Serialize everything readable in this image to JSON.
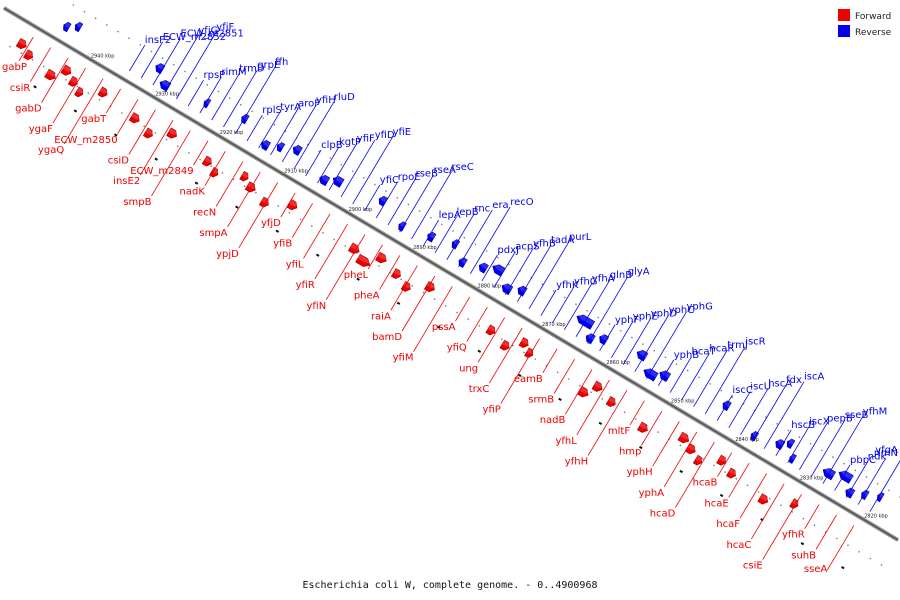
{
  "legend": {
    "forward": {
      "label": "Forward",
      "color": "#ee0000"
    },
    "reverse": {
      "label": "Reverse",
      "color": "#0000ee"
    }
  },
  "caption": "Escherichia coli W, complete genome. - 0..4900968",
  "scale": {
    "ticks": [
      "2940 kbp",
      "2930 kbp",
      "2920 kbp",
      "2910 kbp",
      "2900 kbp",
      "2890 kbp",
      "2880 kbp",
      "2870 kbp",
      "2860 kbp",
      "2850 kbp",
      "2840 kbp",
      "2830 kbp",
      "2820 kbp"
    ]
  },
  "genes": {
    "reverse": [
      "insF2",
      "ECW_m2852",
      "ECW_m2851",
      "yfjG",
      "yfjF",
      "rpsP",
      "rimM",
      "trmD",
      "grpE",
      "ffh",
      "rplS",
      "tyrA",
      "aroF",
      "yfiH",
      "rluD",
      "clpB",
      "kgtP",
      "yfiF",
      "yfiD",
      "yfiE",
      "yfiC",
      "rpoE",
      "rseB",
      "rseA",
      "rseC",
      "lepA",
      "lepB",
      "rnc",
      "era",
      "recO",
      "pdxJ",
      "acpS",
      "yfhB",
      "tadA",
      "purL",
      "yfhK",
      "yfhG",
      "yfhA",
      "glnB",
      "glyA",
      "yphF",
      "yphE",
      "yphD",
      "yphC",
      "yphG",
      "yphB",
      "hcaT",
      "hcaR",
      "trmJ",
      "iscR",
      "iscC",
      "iscU",
      "hscA",
      "fdx",
      "iscA",
      "hscB",
      "iscX",
      "pepB",
      "sseB",
      "yfhM",
      "pbpC",
      "ndk",
      "rlmN",
      "yfgA"
    ],
    "forward": [
      "gabP",
      "csiR",
      "gabD",
      "ygaF",
      "ygaQ",
      "gabT",
      "ECW_m2850",
      "csiD",
      "insE2",
      "smpB",
      "ECW_m2849",
      "nadK",
      "recN",
      "smpA",
      "ypjD",
      "yfjD",
      "yfiB",
      "yfiL",
      "yfiR",
      "yfiN",
      "pheL",
      "pheA",
      "raiA",
      "bamD",
      "yfiM",
      "pssA",
      "yfiQ",
      "ung",
      "trxC",
      "yfiP",
      "eamB",
      "srmB",
      "nadB",
      "yfhL",
      "yfhH",
      "mltF",
      "hmp",
      "yphH",
      "yphA",
      "hcaD",
      "hcaB",
      "hcaE",
      "hcaF",
      "hcaC",
      "csiE",
      "yfhR",
      "suhB",
      "sseA"
    ]
  }
}
